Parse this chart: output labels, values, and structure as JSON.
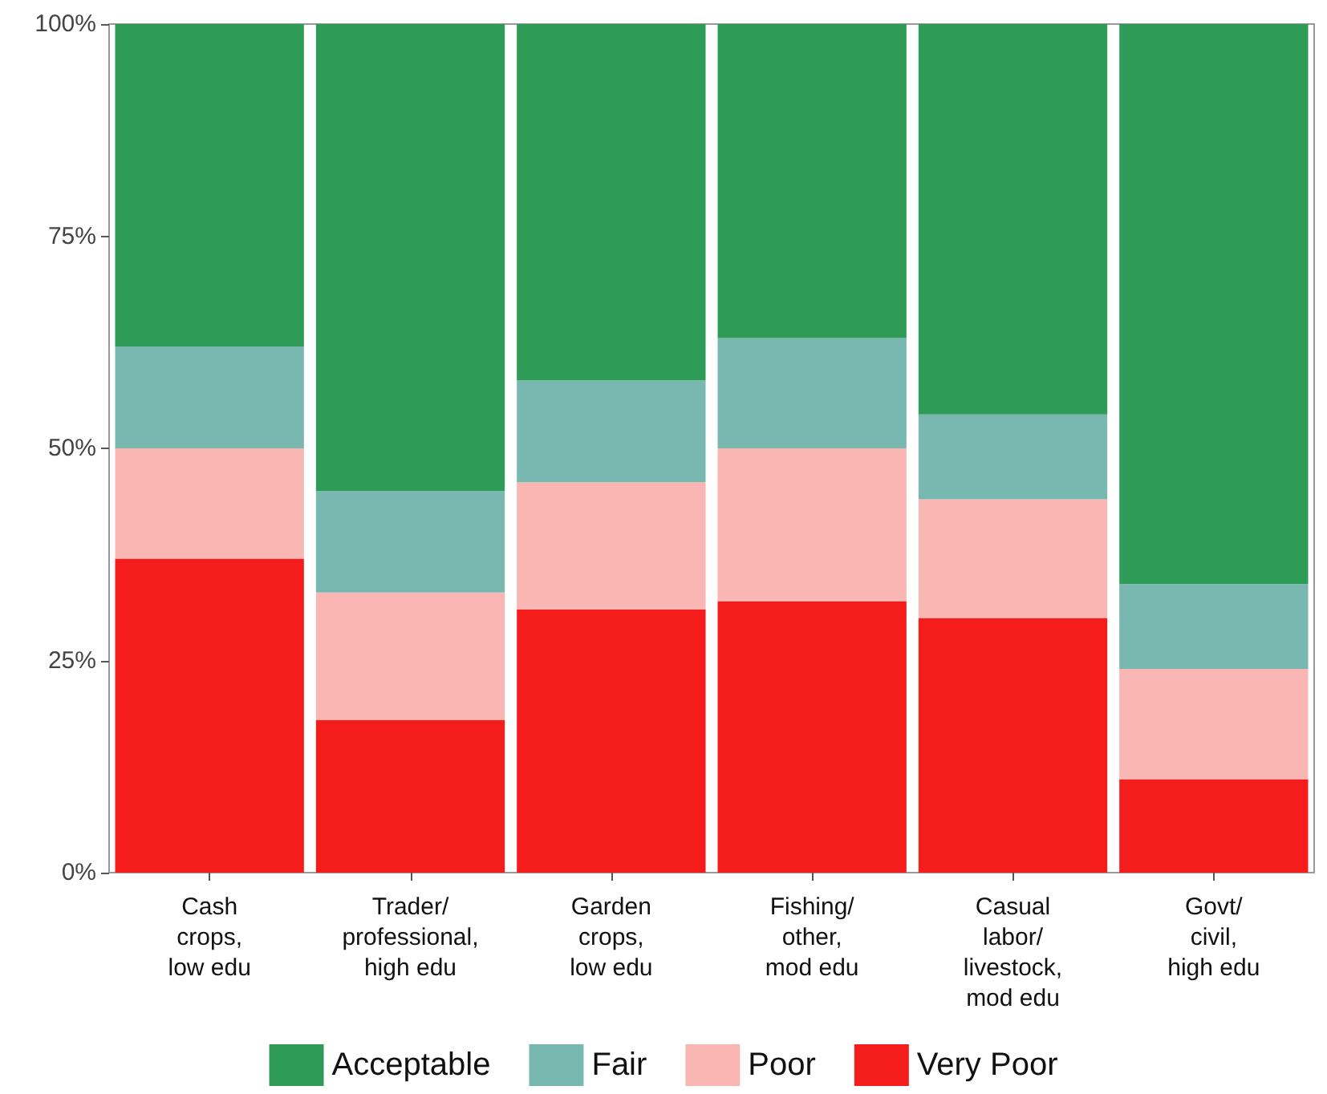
{
  "chart_data": {
    "type": "bar",
    "stacked": true,
    "categories": [
      "Cash\ncrops,\nlow edu",
      "Trader/\nprofessional,\nhigh edu",
      "Garden\ncrops,\nlow edu",
      "Fishing/\nother,\nmod edu",
      "Casual\nlabor/\nlivestock,\nmod edu",
      "Govt/\ncivil,\nhigh edu"
    ],
    "series": [
      {
        "name": "Very Poor",
        "color": "#f51c1c",
        "values": [
          37,
          18,
          31,
          32,
          30,
          11
        ]
      },
      {
        "name": "Poor",
        "color": "#f9b6b3",
        "values": [
          13,
          15,
          15,
          18,
          14,
          13
        ]
      },
      {
        "name": "Fair",
        "color": "#79b8b0",
        "values": [
          12,
          12,
          12,
          13,
          10,
          10
        ]
      },
      {
        "name": "Acceptable",
        "color": "#2e9b57",
        "values": [
          38,
          55,
          42,
          37,
          46,
          66
        ]
      }
    ],
    "ylim": [
      0,
      100
    ],
    "yticks": [
      {
        "value": 0,
        "label": "0%"
      },
      {
        "value": 25,
        "label": "25%"
      },
      {
        "value": 50,
        "label": "50%"
      },
      {
        "value": 75,
        "label": "75%"
      },
      {
        "value": 100,
        "label": "100%"
      }
    ],
    "grid": false,
    "legend": "bottom"
  }
}
